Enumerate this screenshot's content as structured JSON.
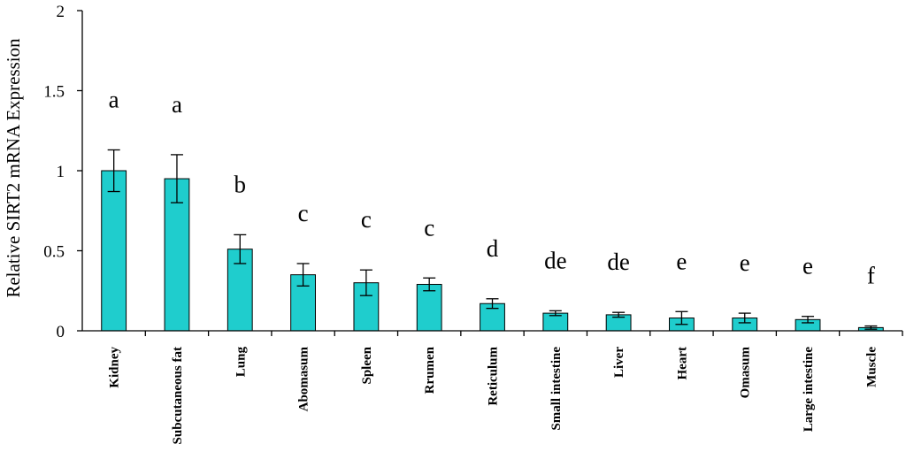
{
  "chart_data": {
    "type": "bar",
    "title": "",
    "xlabel": "",
    "ylabel": "Relative SIRT2 mRNA Expression",
    "ylim": [
      0,
      2
    ],
    "yticks": [
      {
        "value": 0,
        "label": "0"
      },
      {
        "value": 0.5,
        "label": "0.5"
      },
      {
        "value": 1,
        "label": "1"
      },
      {
        "value": 1.5,
        "label": "1.5"
      },
      {
        "value": 2,
        "label": "2"
      }
    ],
    "grid": false,
    "bar_color": "#1fcdcd",
    "categories": [
      "Kidney",
      "Subcutaneous fat",
      "Lung",
      "Abomasum",
      "Spleen",
      "Rrumen",
      "Reticulum",
      "Small intestine",
      "Liver",
      "Heart",
      "Omasum",
      "Large intestine",
      "Muscle"
    ],
    "values": [
      1.0,
      0.95,
      0.51,
      0.35,
      0.3,
      0.29,
      0.17,
      0.11,
      0.1,
      0.08,
      0.08,
      0.07,
      0.02
    ],
    "errors": [
      0.13,
      0.15,
      0.09,
      0.07,
      0.08,
      0.04,
      0.03,
      0.015,
      0.015,
      0.04,
      0.03,
      0.02,
      0.01
    ],
    "significance_letters": [
      "a",
      "a",
      "b",
      "c",
      "c",
      "c",
      "d",
      "de",
      "de",
      "e",
      "e",
      "e",
      "f"
    ]
  }
}
